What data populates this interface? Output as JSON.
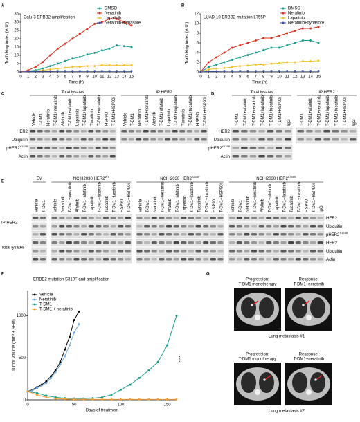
{
  "chart_data": [
    {
      "type": "line",
      "letter": "A",
      "title": "Calu-3 ERBB2 amplification",
      "xlabel": "Time (h)",
      "ylabel": "Trafficking index (A.U.)",
      "x": [
        0,
        1,
        2,
        3,
        4,
        5,
        6,
        7,
        8,
        9,
        10,
        11,
        12,
        13,
        14,
        15
      ],
      "xlim": [
        0,
        15
      ],
      "xticks": [
        0,
        1,
        2,
        3,
        4,
        5,
        6,
        7,
        8,
        9,
        10,
        11,
        12,
        13,
        14,
        15
      ],
      "ylim": [
        0,
        35
      ],
      "yticks": [
        0,
        5,
        10,
        15,
        20,
        25,
        30,
        35
      ],
      "legend": "upper right",
      "series": [
        {
          "name": "DMSO",
          "color": "#1a9c8c",
          "values": [
            0,
            0.5,
            1,
            2,
            3.5,
            5,
            6.5,
            8,
            9,
            10.5,
            11.5,
            13,
            14,
            16,
            15.5,
            15
          ]
        },
        {
          "name": "Neratinib",
          "color": "#d7301f",
          "values": [
            0,
            1,
            3,
            6,
            10,
            14,
            17,
            20,
            23,
            26,
            29,
            30,
            32,
            32,
            30,
            28
          ]
        },
        {
          "name": "Lapatinib",
          "color": "#f2c12e",
          "values": [
            0,
            0.3,
            0.5,
            1,
            1.5,
            2,
            2.5,
            3,
            3,
            3.5,
            3.5,
            4,
            4,
            4,
            4,
            4
          ]
        },
        {
          "name": "Neratinib+dynasore",
          "color": "#3a4fa3",
          "values": [
            0,
            0.2,
            0.3,
            0.4,
            0.4,
            0.5,
            0.5,
            0.5,
            0.5,
            0.5,
            0.5,
            0.5,
            0.5,
            0.5,
            0.5,
            0.5
          ]
        }
      ],
      "annotations": []
    },
    {
      "type": "line",
      "letter": "B",
      "title": "LUAD-10 ERBB2 mutation L755P",
      "xlabel": "Time (h)",
      "ylabel": "Trafficking index (A.U.)",
      "x": [
        0,
        1,
        2,
        3,
        4,
        5,
        6,
        7,
        8,
        9,
        10,
        11,
        12,
        13,
        14,
        15
      ],
      "xlim": [
        0,
        15
      ],
      "xticks": [
        0,
        1,
        2,
        3,
        4,
        5,
        6,
        7,
        8,
        9,
        10,
        11,
        12,
        13,
        14,
        15
      ],
      "ylim": [
        0,
        12
      ],
      "yticks": [
        0,
        2,
        4,
        6,
        8,
        10,
        12
      ],
      "legend": "upper right",
      "series": [
        {
          "name": "DMSO",
          "color": "#1a9c8c",
          "values": [
            0,
            1,
            1.5,
            2,
            2.5,
            3,
            3.5,
            4,
            4.5,
            5,
            5,
            5.5,
            6,
            6.5,
            6.5,
            6
          ]
        },
        {
          "name": "Neratinib",
          "color": "#d7301f",
          "values": [
            0,
            2,
            3,
            4,
            5,
            5.5,
            6,
            6.5,
            7,
            7,
            7.5,
            8,
            8.5,
            9,
            9,
            9.3
          ]
        },
        {
          "name": "Lapatinib",
          "color": "#f2c12e",
          "values": [
            0,
            0.5,
            0.7,
            0.8,
            1,
            1.2,
            1.3,
            1.5,
            1.5,
            1.7,
            1.8,
            2,
            2,
            2.2,
            2.2,
            2.3
          ]
        },
        {
          "name": "Neratinib+dynasore",
          "color": "#3a4fa3",
          "values": [
            0,
            0.1,
            0.15,
            0.2,
            0.2,
            0.2,
            0.2,
            0.2,
            0.2,
            0.2,
            0.2,
            0.2,
            0.2,
            0.2,
            0.2,
            0.2
          ]
        }
      ],
      "annotations": []
    },
    {
      "type": "line",
      "letter": "F",
      "title": "ERBB2 mutation S310F and amplification",
      "xlabel": "Days of treatment",
      "ylabel": "Tumor volume (mm³ ± SEM)",
      "xlim": [
        0,
        160
      ],
      "xticks": [
        0,
        50,
        100,
        150
      ],
      "ylim": [
        0,
        1300
      ],
      "yticks": [
        0,
        500,
        1000
      ],
      "legend": "upper left",
      "series": [
        {
          "name": "Vehicle",
          "color": "#000000",
          "x": [
            0,
            5,
            10,
            15,
            20,
            25,
            30,
            35,
            40,
            45,
            50,
            55
          ],
          "values": [
            100,
            120,
            150,
            180,
            220,
            280,
            350,
            450,
            600,
            750,
            950,
            1050
          ]
        },
        {
          "name": "Neratinib",
          "color": "#6fa8dc",
          "x": [
            0,
            5,
            10,
            15,
            20,
            25,
            30,
            35,
            40,
            45,
            50,
            55
          ],
          "values": [
            100,
            110,
            140,
            170,
            200,
            260,
            330,
            420,
            520,
            650,
            800,
            900
          ]
        },
        {
          "name": "T-DM1",
          "color": "#1a9c8c",
          "x": [
            0,
            10,
            20,
            30,
            40,
            50,
            60,
            70,
            80,
            90,
            100,
            110,
            120,
            130,
            140,
            150,
            160
          ],
          "values": [
            100,
            80,
            50,
            30,
            20,
            15,
            15,
            20,
            30,
            60,
            120,
            180,
            260,
            350,
            450,
            650,
            1000
          ]
        },
        {
          "name": "T-DM1 + neratinib",
          "color": "#f39c32",
          "x": [
            0,
            10,
            20,
            30,
            40,
            50,
            60,
            70,
            80,
            90,
            100,
            110,
            120,
            130,
            140,
            150,
            160
          ],
          "values": [
            100,
            60,
            30,
            15,
            10,
            5,
            5,
            5,
            5,
            5,
            5,
            5,
            5,
            5,
            5,
            5,
            5
          ]
        }
      ],
      "annotations": [
        "****"
      ]
    }
  ],
  "blots": [
    {
      "letter": "C",
      "groups": [
        {
          "title": "Total lysates",
          "lanes": [
            "Vehicle",
            "T-DM1",
            "Neratinib",
            "T-DM1+neratinib",
            "Afatinib",
            "T-DM1+afatinib",
            "Lapatinib",
            "T-DM1+lapatinib",
            "Tucatinib",
            "T-DM1+tucatinib",
            "HSP90i",
            "T-DM1+HSP90i"
          ]
        },
        {
          "title": "IP:HER2",
          "lanes": [
            "Vehicle",
            "T-DM1",
            "Neratinib",
            "T-DM1+neratinib",
            "Afatinib",
            "T-DM1+afatinib",
            "Lapatinib",
            "T-DM1+lapatinib",
            "Tucatinib",
            "T-DM1+tucatinib",
            "HSP90i",
            "T-DM1+HSP90i"
          ]
        }
      ],
      "rows": [
        {
          "label": "HER2"
        },
        {
          "label": "Ubiquitin"
        },
        {
          "label": "pHER2",
          "sup": "Y1248"
        },
        {
          "label": "Actin"
        }
      ],
      "sides": []
    },
    {
      "letter": "D",
      "groups": [
        {
          "title": "Total lysates",
          "lanes": [
            "T-DM1",
            "T-DM1+afatinib",
            "T-DM1+neratinib",
            "T-DM1+lapatinib",
            "T-DM1+tucatinib",
            "T-DM1+HSP90i",
            "IgG"
          ]
        },
        {
          "title": "IP:HER2",
          "lanes": [
            "T-DM1",
            "T-DM1+afatinib",
            "T-DM1+neratinib",
            "T-DM1+lapatinib",
            "T-DM1+tucatinib",
            "T-DM1+HSP90i",
            "IgG"
          ]
        }
      ],
      "rows": [
        {
          "label": "HER2"
        },
        {
          "label": "Ubiquitin"
        },
        {
          "label": "pHER2",
          "sup": "Y1248"
        },
        {
          "label": "Actin"
        }
      ],
      "sides": []
    },
    {
      "letter": "E",
      "groups": [
        {
          "title": "EV",
          "lanes": [
            "Vehicle",
            "T-DM1"
          ]
        },
        {
          "title": "NCIH2030 HER2",
          "sup": "WT",
          "lanes": [
            "Vehicle",
            "Neratinib",
            "T-DM1+neratinib",
            "Afatinib",
            "T-DM1+afatinib",
            "Lapatinib",
            "T-DM1+lapatinib",
            "Tucatinib",
            "T-DM1+tucatinib",
            "HSP90i",
            "T-DM1+HSP90i"
          ]
        },
        {
          "title": "NCIH2030 HER2",
          "sup": "S310F",
          "lanes": [
            "Vehicle",
            "T-DM1",
            "Neratinib",
            "T-DM1+neratinib",
            "Afatinib",
            "T-DM1+afatinib",
            "Lapatinib",
            "T-DM1+lapatinib",
            "Tucatinib",
            "T-DM1+tucatinib",
            "HSP90i",
            "T-DM1+HSP90i"
          ]
        },
        {
          "title": "NCIH2030 HER2",
          "sup": "L755S",
          "lanes": [
            "Vehicle",
            "T-DM1",
            "Neratinib",
            "T-DM1+neratinib",
            "Afatinib",
            "T-DM1+afatinib",
            "Lapatinib",
            "T-DM1+lapatinib",
            "Tucatinib",
            "T-DM1+tucatinib",
            "HSP90i",
            "T-DM1+HSP90i",
            "IgG"
          ]
        }
      ],
      "rows": [
        {
          "label": "HER2"
        },
        {
          "label": "Ubiquitin"
        },
        {
          "label": "pHER2",
          "sup": "Y1248"
        },
        {
          "label": "HER2"
        },
        {
          "label": "Ubiquitin"
        },
        {
          "label": "Actin"
        }
      ],
      "sides": [
        "IP:HER2",
        "Total lysates"
      ]
    }
  ],
  "ct": {
    "letter": "G",
    "cases": [
      {
        "left": [
          "Progression:",
          "T-DM1 monotherapy"
        ],
        "right": [
          "Response:",
          "T-DM1+neratinib"
        ],
        "caption": "Lung metastasis #1"
      },
      {
        "left": [
          "Progression:",
          "T-DM1 monotherapy"
        ],
        "right": [
          "Response:",
          "T-DM1+neratinib"
        ],
        "caption": "Lung metastasis #2"
      }
    ]
  }
}
